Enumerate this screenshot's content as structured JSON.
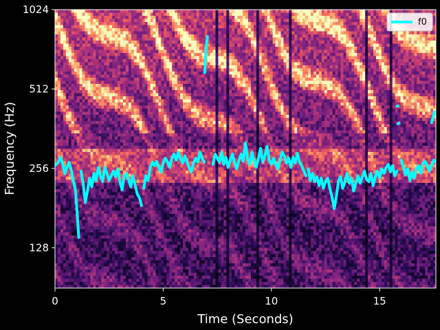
{
  "chart_data": {
    "type": "heatmap",
    "overlay": "line",
    "xlabel": "Time (Seconds)",
    "ylabel": "Frequency (Hz)",
    "xlim": [
      0,
      17.6
    ],
    "ylim": [
      90,
      1024
    ],
    "y_scale": "log2",
    "x_ticks": [
      0,
      5,
      10,
      15
    ],
    "x_tick_labels": [
      "0",
      "5",
      "10",
      "15"
    ],
    "y_ticks": [
      128,
      256,
      512,
      1024
    ],
    "y_tick_labels": [
      "128",
      "256",
      "512",
      "1024"
    ],
    "legend": {
      "entries": [
        "f0"
      ],
      "placement": "top-right"
    },
    "colormap": "magma",
    "series": [
      {
        "name": "f0",
        "color": "#00ffff",
        "segments": [
          [
            [
              0.0,
              262
            ],
            [
              0.15,
              270
            ],
            [
              0.25,
              282
            ],
            [
              0.35,
              268
            ],
            [
              0.45,
              244
            ],
            [
              0.55,
              258
            ],
            [
              0.65,
              270
            ],
            [
              0.75,
              252
            ],
            [
              0.85,
              230
            ],
            [
              0.95,
              210
            ],
            [
              1.05,
              160
            ],
            [
              1.1,
              140
            ]
          ],
          [
            [
              1.2,
              250
            ],
            [
              1.3,
              225
            ],
            [
              1.4,
              190
            ],
            [
              1.5,
              210
            ],
            [
              1.6,
              235
            ],
            [
              1.7,
              218
            ],
            [
              1.8,
              245
            ],
            [
              1.9,
              230
            ],
            [
              2.0,
              258
            ],
            [
              2.1,
              240
            ],
            [
              2.2,
              228
            ],
            [
              2.3,
              258
            ],
            [
              2.4,
              245
            ],
            [
              2.5,
              230
            ],
            [
              2.6,
              240
            ],
            [
              2.7,
              250
            ],
            [
              2.8,
              238
            ],
            [
              2.9,
              255
            ],
            [
              3.0,
              228
            ],
            [
              3.1,
              212
            ],
            [
              3.2,
              240
            ],
            [
              3.3,
              245
            ],
            [
              3.4,
              232
            ],
            [
              3.5,
              218
            ],
            [
              3.6,
              240
            ],
            [
              3.7,
              222
            ],
            [
              3.8,
              205
            ],
            [
              3.9,
              198
            ],
            [
              4.0,
              185
            ]
          ],
          [
            [
              4.1,
              215
            ],
            [
              4.2,
              240
            ],
            [
              4.3,
              230
            ],
            [
              4.4,
              258
            ],
            [
              4.5,
              270
            ],
            [
              4.6,
              262
            ],
            [
              4.7,
              272
            ],
            [
              4.8,
              258
            ],
            [
              4.9,
              248
            ],
            [
              5.0,
              268
            ],
            [
              5.1,
              280
            ],
            [
              5.2,
              270
            ],
            [
              5.3,
              258
            ],
            [
              5.4,
              280
            ],
            [
              5.5,
              290
            ],
            [
              5.6,
              275
            ],
            [
              5.7,
              295
            ],
            [
              5.8,
              278
            ],
            [
              5.9,
              268
            ],
            [
              6.0,
              285
            ],
            [
              6.1,
              270
            ],
            [
              6.2,
              258
            ],
            [
              6.3,
              248
            ],
            [
              6.4,
              268
            ],
            [
              6.5,
              280
            ],
            [
              6.6,
              270
            ],
            [
              6.7,
              295
            ],
            [
              6.8,
              280
            ],
            [
              6.9,
              270
            ]
          ],
          [
            [
              6.92,
              590
            ],
            [
              6.95,
              660
            ],
            [
              7.0,
              760
            ],
            [
              7.05,
              810
            ]
          ],
          [
            [
              7.3,
              265
            ],
            [
              7.4,
              290
            ],
            [
              7.5,
              280
            ],
            [
              7.6,
              270
            ],
            [
              7.7,
              295
            ],
            [
              7.8,
              265
            ],
            [
              7.9,
              282
            ],
            [
              8.0,
              258
            ],
            [
              8.1,
              275
            ],
            [
              8.2,
              290
            ],
            [
              8.3,
              268
            ],
            [
              8.4,
              255
            ],
            [
              8.5,
              275
            ],
            [
              8.6,
              290
            ],
            [
              8.7,
              272
            ],
            [
              8.8,
              320
            ],
            [
              8.9,
              280
            ],
            [
              9.0,
              265
            ],
            [
              9.1,
              295
            ],
            [
              9.2,
              275
            ],
            [
              9.3,
              258
            ],
            [
              9.4,
              280
            ],
            [
              9.5,
              305
            ],
            [
              9.6,
              270
            ],
            [
              9.7,
              285
            ],
            [
              9.8,
              310
            ],
            [
              9.9,
              275
            ],
            [
              10.0,
              265
            ],
            [
              10.1,
              280
            ],
            [
              10.2,
              265
            ],
            [
              10.3,
              255
            ],
            [
              10.4,
              275
            ],
            [
              10.5,
              295
            ],
            [
              10.6,
              285
            ],
            [
              10.7,
              268
            ],
            [
              10.8,
              280
            ],
            [
              10.9,
              258
            ],
            [
              11.0,
              282
            ],
            [
              11.1,
              268
            ],
            [
              11.2,
              292
            ],
            [
              11.3,
              270
            ],
            [
              11.4,
              262
            ],
            [
              11.5,
              250
            ],
            [
              11.6,
              240
            ]
          ],
          [
            [
              11.7,
              255
            ],
            [
              11.8,
              230
            ],
            [
              11.9,
              245
            ],
            [
              12.0,
              228
            ],
            [
              12.1,
              238
            ],
            [
              12.2,
              220
            ],
            [
              12.3,
              235
            ],
            [
              12.4,
              215
            ],
            [
              12.5,
              228
            ],
            [
              12.6,
              235
            ],
            [
              12.7,
              215
            ],
            [
              12.8,
              200
            ],
            [
              12.9,
              180
            ],
            [
              13.0,
              200
            ],
            [
              13.1,
              230
            ],
            [
              13.2,
              238
            ],
            [
              13.3,
              215
            ],
            [
              13.4,
              228
            ],
            [
              13.5,
              245
            ],
            [
              13.6,
              225
            ],
            [
              13.7,
              235
            ],
            [
              13.8,
              210
            ],
            [
              13.9,
              225
            ],
            [
              14.0,
              240
            ],
            [
              14.1,
              225
            ],
            [
              14.2,
              238
            ],
            [
              14.3,
              250
            ],
            [
              14.4,
              232
            ],
            [
              14.5,
              228
            ],
            [
              14.6,
              245
            ],
            [
              14.7,
              220
            ],
            [
              14.8,
              238
            ],
            [
              14.9,
              250
            ],
            [
              15.0,
              235
            ],
            [
              15.1,
              255
            ],
            [
              15.2,
              245
            ],
            [
              15.3,
              258
            ],
            [
              15.4,
              265
            ],
            [
              15.5,
              248
            ],
            [
              15.6,
              262
            ],
            [
              15.7,
              240
            ],
            [
              15.8,
              250
            ]
          ],
          [
            [
              16.0,
              275
            ],
            [
              16.1,
              258
            ],
            [
              16.2,
              242
            ],
            [
              16.3,
              255
            ],
            [
              16.4,
              230
            ],
            [
              16.5,
              248
            ],
            [
              16.6,
              235
            ],
            [
              16.7,
              255
            ],
            [
              16.8,
              262
            ],
            [
              16.9,
              245
            ],
            [
              17.0,
              268
            ],
            [
              17.1,
              272
            ],
            [
              17.2,
              262
            ],
            [
              17.3,
              250
            ],
            [
              17.4,
              262
            ],
            [
              17.5,
              275
            ],
            [
              17.6,
              270
            ]
          ],
          [
            [
              15.8,
              440
            ],
            [
              15.85,
              442
            ]
          ],
          [
            [
              15.85,
              378
            ],
            [
              15.9,
              380
            ]
          ],
          [
            [
              17.4,
              382
            ],
            [
              17.45,
              395
            ],
            [
              17.5,
              410
            ],
            [
              17.55,
              420
            ]
          ]
        ]
      }
    ]
  }
}
